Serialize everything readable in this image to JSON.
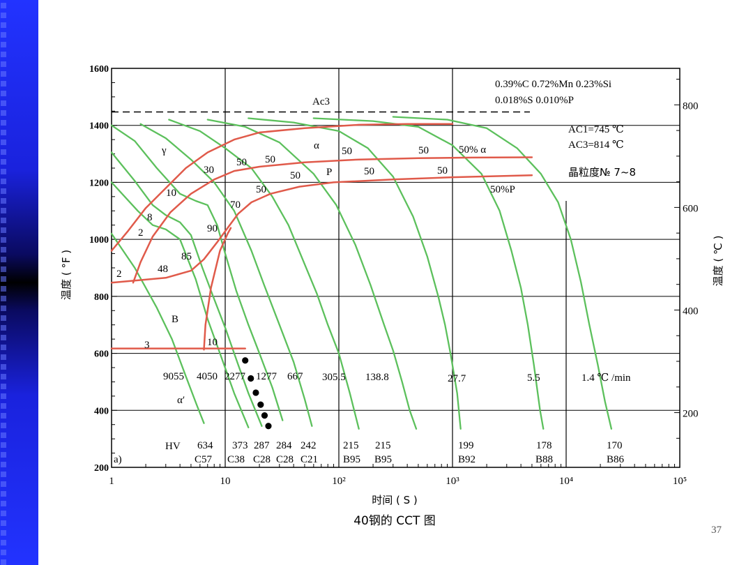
{
  "colors": {
    "sidebar": "#2233ff",
    "grid": "#000000",
    "cooling_curve": "#5cc05c",
    "transform_curve": "#e05a4a",
    "marker": "#000000"
  },
  "page_number": "37",
  "chart_data": {
    "type": "line",
    "title": "40钢的 CCT 图",
    "xlabel": "时间 ( S )",
    "ylabel_left": "温度 ( °F )",
    "ylabel_right": "温度 ( ℃ )",
    "x_scale": "log",
    "xlim": [
      1,
      100000
    ],
    "ylim_F": [
      200,
      1600
    ],
    "x_ticks": [
      "1",
      "10",
      "10²",
      "10³",
      "10⁴",
      "10⁵"
    ],
    "y_ticks_F": [
      "200",
      "400",
      "600",
      "800",
      "1000",
      "1200",
      "1400",
      "1600"
    ],
    "y_ticks_C": [
      "200",
      "400",
      "600",
      "800"
    ],
    "composition": [
      "0.39%C 0.72%Mn 0.23%Si",
      "0.018%S 0.010%P"
    ],
    "critical_points": [
      "AC1=745 ℃",
      "AC3=814 ℃"
    ],
    "grain_size": "晶粒度№ 7~8",
    "ac3_label": "Ac3",
    "panel_label": "a)",
    "phase_labels": [
      "γ",
      "α",
      "P",
      "B",
      "α′"
    ],
    "region_labels": [
      "50% α",
      "50%P"
    ],
    "percent_labels": [
      "2",
      "2",
      "8",
      "10",
      "30",
      "50",
      "50",
      "50",
      "50",
      "50",
      "50",
      "50",
      "50",
      "70",
      "90",
      "85",
      "48",
      "10",
      "3"
    ],
    "cooling_rates": [
      "9055",
      "4050",
      "2277",
      "1277",
      "667",
      "305.5",
      "138.8",
      "27.7",
      "5.5",
      "1.4 ℃ /min"
    ],
    "hardness_label": "HV",
    "hardness": [
      {
        "hv": "634",
        "rc": "C57"
      },
      {
        "hv": "373",
        "rc": "C38"
      },
      {
        "hv": "287",
        "rc": "C28"
      },
      {
        "hv": "284",
        "rc": "C28"
      },
      {
        "hv": "242",
        "rc": "C21"
      },
      {
        "hv": "215",
        "rc": "B95"
      },
      {
        "hv": "215",
        "rc": "B95"
      },
      {
        "hv": "199",
        "rc": "B92"
      },
      {
        "hv": "178",
        "rc": "B88"
      },
      {
        "hv": "170",
        "rc": "B86"
      }
    ],
    "grid": true
  }
}
